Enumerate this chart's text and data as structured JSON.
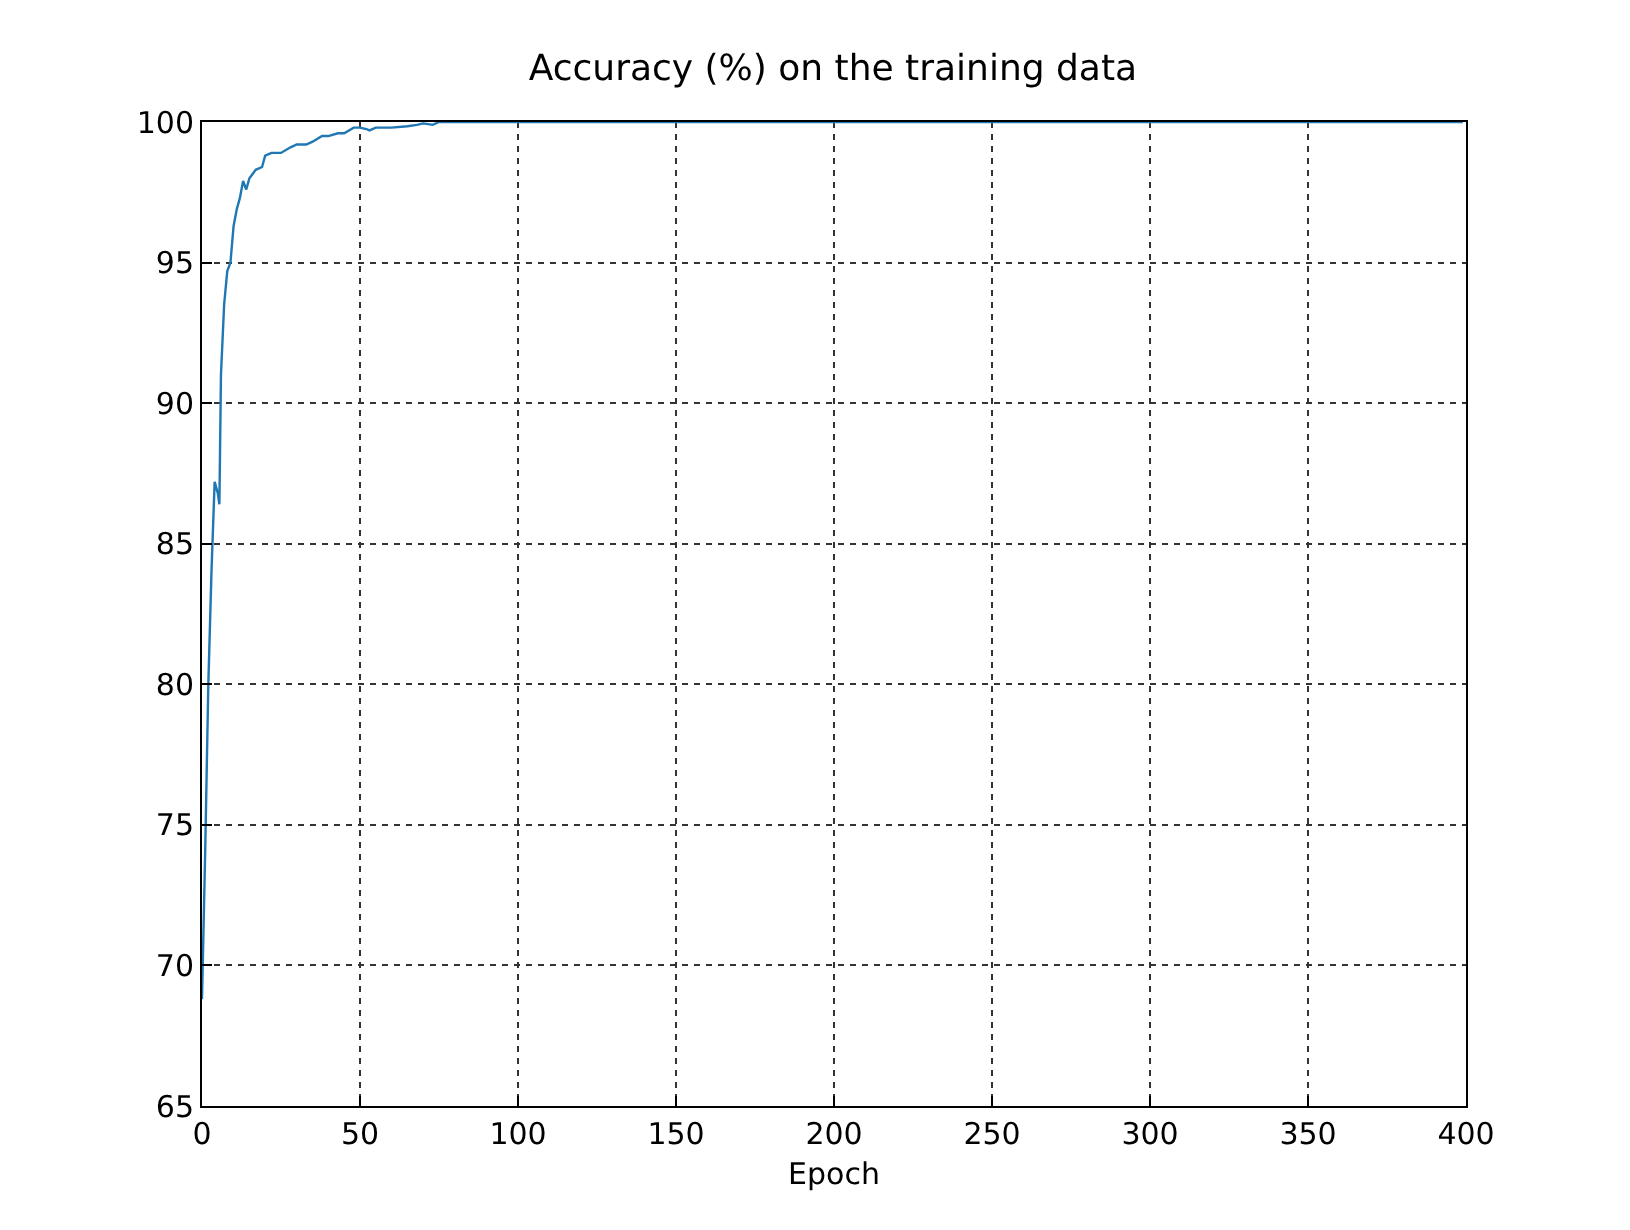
{
  "chart_data": {
    "type": "line",
    "title": "Accuracy (%) on the training data",
    "xlabel": "Epoch",
    "x": [
      0,
      1,
      2,
      3,
      4,
      5,
      5.5,
      6,
      7,
      8,
      9,
      10,
      11,
      12,
      13,
      14,
      15,
      17,
      19,
      20,
      22,
      25,
      28,
      30,
      33,
      35,
      38,
      40,
      43,
      45,
      48,
      50,
      52,
      53,
      55,
      60,
      65,
      68,
      70,
      73,
      75,
      80,
      100,
      150,
      200,
      250,
      300,
      350,
      399
    ],
    "series": [
      {
        "color": "#1f77b4",
        "values": [
          68.8,
          74,
          80,
          84,
          87.2,
          86.8,
          86.4,
          91,
          93.5,
          94.7,
          95,
          96.3,
          96.9,
          97.3,
          97.9,
          97.6,
          98.0,
          98.3,
          98.4,
          98.8,
          98.9,
          98.9,
          99.1,
          99.2,
          99.2,
          99.3,
          99.5,
          99.5,
          99.6,
          99.6,
          99.8,
          99.8,
          99.75,
          99.7,
          99.8,
          99.8,
          99.85,
          99.9,
          99.95,
          99.9,
          100,
          100,
          100,
          100,
          100,
          100,
          100,
          100,
          100
        ]
      }
    ],
    "xlim": [
      0,
      400
    ],
    "xticks": [
      0,
      50,
      100,
      150,
      200,
      250,
      300,
      350,
      400
    ],
    "ylim": [
      65,
      100
    ],
    "yticks": [
      65,
      70,
      75,
      80,
      85,
      90,
      95,
      100
    ],
    "grid": true,
    "line_style": "solid"
  }
}
